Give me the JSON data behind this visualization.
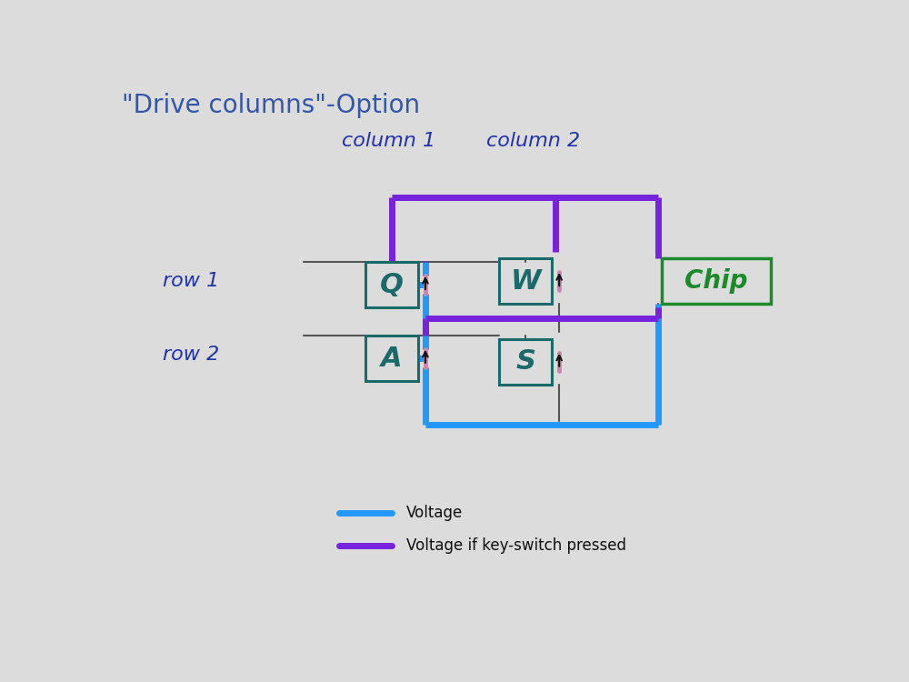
{
  "title": "\"Drive columns\"-Option",
  "title_color": "#3355aa",
  "title_fontsize": 20,
  "bg_color": "#dcdcdc",
  "col1_label": "column 1",
  "col2_label": "column 2",
  "col_label_color": "#2233aa",
  "col_label_fontsize": 16,
  "row1_label": "row 1",
  "row2_label": "row 2",
  "row_label_color": "#2233aa",
  "row_label_fontsize": 16,
  "switch_color": "#1a6a6a",
  "switch_lw": 2.2,
  "chip_color": "#1a8a2a",
  "chip_lw": 2.5,
  "wire_gray_color": "#555555",
  "wire_gray_lw": 1.5,
  "wire_blue_color": "#2299ff",
  "wire_blue_lw": 5,
  "wire_purple_color": "#7722dd",
  "wire_purple_lw": 5,
  "diode_color": "#cc88aa",
  "diode_arrow_color": "#111111",
  "legend_voltage_label": "Voltage",
  "legend_keypressed_label": "Voltage if key-switch pressed",
  "legend_fontsize": 12
}
